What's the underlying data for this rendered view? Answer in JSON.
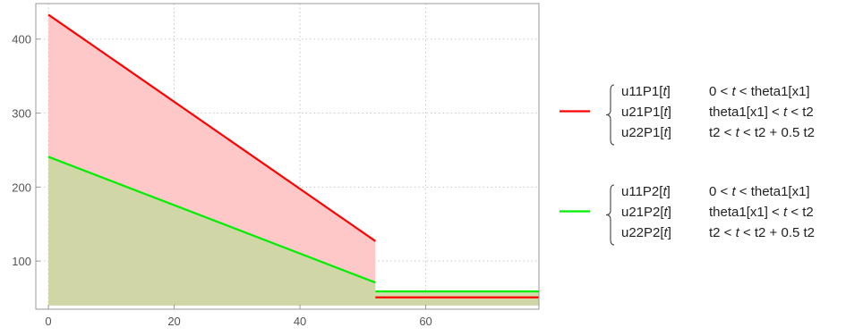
{
  "chart_data": {
    "type": "line",
    "title": "",
    "xlabel": "",
    "ylabel": "",
    "xlim": [
      -2,
      78
    ],
    "ylim": [
      35,
      448
    ],
    "xticks": [
      0,
      20,
      40,
      60
    ],
    "yticks": [
      100,
      200,
      300,
      400
    ],
    "grid": true,
    "grid_style": "dotted",
    "legend_position": "right",
    "fill_baseline": 40,
    "series": [
      {
        "color": "#ff0000",
        "fill_color": "#ffc8c8",
        "segments": [
          {
            "x": [
              0,
              52
            ],
            "y": [
              433,
              127
            ]
          },
          {
            "x": [
              52,
              78
            ],
            "y": [
              51,
              51
            ]
          }
        ],
        "legend": {
          "rows": [
            {
              "func": "u11P1",
              "arg": "t",
              "cond_pre": "0 < ",
              "cond_var": "t",
              "cond_post": " < theta1[x1]"
            },
            {
              "func": "u21P1",
              "arg": "t",
              "cond_pre": "theta1[x1] < ",
              "cond_var": "t",
              "cond_post": " < t2"
            },
            {
              "func": "u22P1",
              "arg": "t",
              "cond_pre": "t2 < ",
              "cond_var": "t",
              "cond_post": " < t2 + 0.5 t2"
            }
          ]
        }
      },
      {
        "color": "#00ee00",
        "fill_color": "#c8d8a0",
        "segments": [
          {
            "x": [
              0,
              52
            ],
            "y": [
              241,
              71
            ]
          },
          {
            "x": [
              52,
              78
            ],
            "y": [
              59,
              59
            ]
          }
        ],
        "legend": {
          "rows": [
            {
              "func": "u11P2",
              "arg": "t",
              "cond_pre": "0 < ",
              "cond_var": "t",
              "cond_post": " < theta1[x1]"
            },
            {
              "func": "u21P2",
              "arg": "t",
              "cond_pre": "theta1[x1] < ",
              "cond_var": "t",
              "cond_post": " < t2"
            },
            {
              "func": "u22P2",
              "arg": "t",
              "cond_pre": "t2 < ",
              "cond_var": "t",
              "cond_post": " < t2 + 0.5 t2"
            }
          ]
        }
      }
    ]
  }
}
